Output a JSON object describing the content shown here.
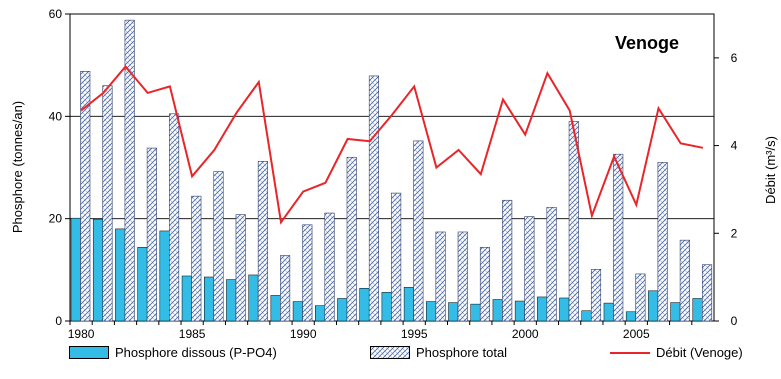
{
  "chart_data": {
    "type": "bar",
    "title": "Venoge",
    "ylabel": "Phosphore (tonnes/an)",
    "y2label": "Débit (m³/s)",
    "ylim": [
      0,
      60
    ],
    "y2lim": [
      0,
      7
    ],
    "yticks": [
      "0",
      "20",
      "40",
      "60"
    ],
    "y2ticks": [
      "0",
      "2",
      "4",
      "6"
    ],
    "xticks": [
      "1980",
      "1985",
      "1990",
      "1995",
      "2000",
      "2005"
    ],
    "grid": "horizontal at 20 and 40",
    "legend_position": "bottom",
    "x": [
      1980,
      1981,
      1982,
      1983,
      1984,
      1985,
      1986,
      1987,
      1988,
      1989,
      1990,
      1991,
      1992,
      1993,
      1994,
      1995,
      1996,
      1997,
      1998,
      1999,
      2000,
      2001,
      2002,
      2003,
      2004,
      2005,
      2006,
      2007,
      2008
    ],
    "series": [
      {
        "name": "Phosphore dissous (P-PO4)",
        "axis": "left",
        "kind": "bar",
        "color": "#33bde6",
        "values": [
          20.1,
          19.9,
          18.0,
          14.4,
          17.6,
          8.8,
          8.6,
          8.1,
          9.0,
          5.0,
          3.8,
          3.0,
          4.4,
          6.4,
          5.6,
          6.6,
          3.8,
          3.6,
          3.3,
          4.2,
          3.9,
          4.7,
          4.5,
          2.0,
          3.5,
          1.8,
          5.9,
          3.6,
          4.4
        ]
      },
      {
        "name": "Phosphore total",
        "axis": "left",
        "kind": "bar-hatched",
        "color": "#4a6aa8",
        "values": [
          48.8,
          46.0,
          58.8,
          33.8,
          40.5,
          24.4,
          29.2,
          20.8,
          31.2,
          12.8,
          18.8,
          21.1,
          32.0,
          47.9,
          25.0,
          35.2,
          17.4,
          17.4,
          14.4,
          23.6,
          20.4,
          22.2,
          39.0,
          10.1,
          32.6,
          9.2,
          31.0,
          15.8,
          11.0
        ]
      },
      {
        "name": "Débit (Venoge)",
        "axis": "right",
        "kind": "line",
        "color": "#e8262a",
        "values": [
          4.8,
          5.2,
          5.8,
          5.2,
          5.35,
          3.3,
          3.9,
          4.75,
          5.45,
          2.25,
          2.95,
          3.15,
          4.15,
          4.1,
          4.7,
          5.35,
          3.5,
          3.9,
          3.35,
          5.05,
          4.25,
          5.65,
          4.8,
          2.4,
          3.75,
          2.65,
          4.85,
          4.05,
          3.95
        ]
      }
    ]
  }
}
